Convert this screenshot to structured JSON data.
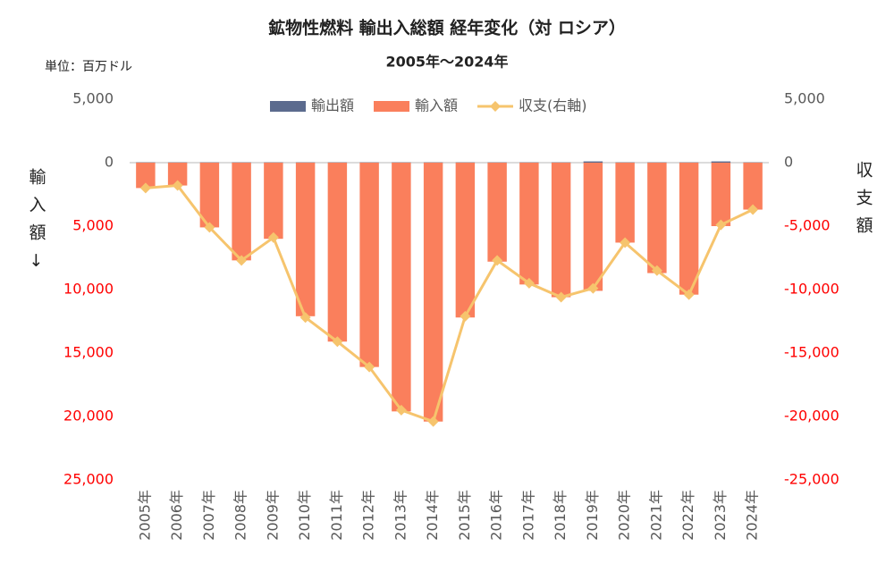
{
  "chart_data": {
    "type": "bar",
    "title": "鉱物性燃料 輸出入総額 経年変化（対 ロシア）",
    "subtitle": "2005年～2024年",
    "unit_label": "単位：百万ドル",
    "y_label": "輸入額↓",
    "y2_label": "収支額",
    "categories": [
      "2005年",
      "2006年",
      "2007年",
      "2008年",
      "2009年",
      "2010年",
      "2011年",
      "2012年",
      "2013年",
      "2014年",
      "2015年",
      "2016年",
      "2017年",
      "2018年",
      "2019年",
      "2020年",
      "2021年",
      "2022年",
      "2023年",
      "2024年"
    ],
    "series": [
      {
        "name": "輸出額",
        "type": "bar",
        "color": "#5b6b8e",
        "values": [
          20,
          20,
          20,
          20,
          20,
          20,
          20,
          20,
          20,
          20,
          20,
          20,
          20,
          20,
          100,
          20,
          20,
          20,
          100,
          20
        ]
      },
      {
        "name": "輸入額",
        "type": "bar",
        "color": "#fa7f5c",
        "values": [
          -2000,
          -1800,
          -5100,
          -7700,
          -6000,
          -12100,
          -14100,
          -16100,
          -19600,
          -20400,
          -12200,
          -7800,
          -9600,
          -10600,
          -10100,
          -6300,
          -8700,
          -10400,
          -5000,
          -3700
        ]
      },
      {
        "name": "収支(右軸)",
        "type": "line",
        "axis": "y2",
        "color": "#f6c46d",
        "values": [
          -2000,
          -1800,
          -5100,
          -7700,
          -5900,
          -12200,
          -14100,
          -16100,
          -19500,
          -20400,
          -12100,
          -7700,
          -9500,
          -10600,
          -9900,
          -6300,
          -8500,
          -10400,
          -4900,
          -3700
        ]
      }
    ],
    "ylim": [
      -25000,
      5000
    ],
    "yticks": [
      {
        "value": 5000,
        "label": "5,000"
      },
      0,
      {
        "value": -5000,
        "label": "5,000"
      },
      {
        "value": -10000,
        "label": "10,000"
      },
      {
        "value": -15000,
        "label": "15,000"
      },
      {
        "value": -20000,
        "label": "20,000"
      },
      {
        "value": -25000,
        "label": "25,000"
      }
    ],
    "y2lim": [
      -25000,
      5000
    ],
    "y2ticks": [
      {
        "value": 5000,
        "label": "5,000"
      },
      0,
      {
        "value": -5000,
        "label": "-5,000"
      },
      {
        "value": -10000,
        "label": "-10,000"
      },
      {
        "value": -15000,
        "label": "-15,000"
      },
      {
        "value": -20000,
        "label": "-20,000"
      },
      {
        "value": -25000,
        "label": "-25,000"
      }
    ],
    "legend": "top"
  }
}
